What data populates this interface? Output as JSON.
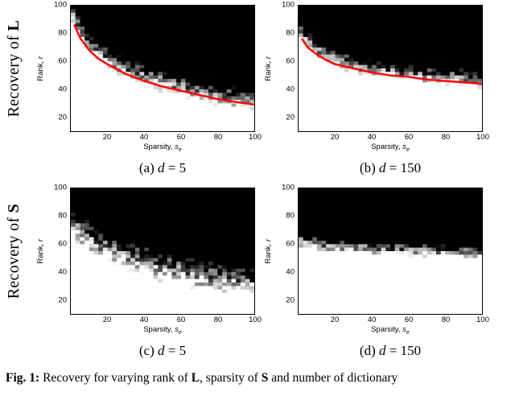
{
  "rows": [
    {
      "prefix": "Recovery of ",
      "bold": "L"
    },
    {
      "prefix": "Recovery of ",
      "bold": "S"
    }
  ],
  "axes": {
    "y_text": "Rank, ",
    "y_var": "r",
    "x_text": "Sparsity, ",
    "x_var": "s",
    "x_sub": "e"
  },
  "caption": {
    "label": "Fig. 1:",
    "t1": " Recovery for varying rank of ",
    "b1": "L",
    "t2": ", sparsity of ",
    "b2": "S",
    "t3": " and number of dictionary"
  },
  "colors": {
    "red_curve": "#ff0000",
    "fail_region": "#000000",
    "success_region": "#ffffff"
  },
  "chart_data": [
    {
      "id": "a",
      "type": "heatmap",
      "subcaption": "(a) d = 5",
      "caption": {
        "paren": "(a)",
        "variable": "d",
        "value": "= 5"
      },
      "xlabel": "Sparsity, s_e",
      "ylabel": "Rank, r",
      "xlim": [
        0,
        100
      ],
      "ylim": [
        10,
        100
      ],
      "xticks": [
        20,
        40,
        60,
        80,
        100
      ],
      "yticks": [
        20,
        40,
        60,
        80,
        100
      ],
      "boundary": {
        "s": [
          0,
          5,
          10,
          15,
          20,
          30,
          40,
          50,
          60,
          70,
          80,
          90,
          100
        ],
        "r": [
          97,
          82,
          72,
          66,
          62,
          55,
          50,
          46,
          42,
          39,
          36,
          33,
          31
        ]
      },
      "transition": 8,
      "red_curve": {
        "s": [
          2,
          5,
          10,
          15,
          20,
          30,
          40,
          50,
          60,
          70,
          80,
          90,
          100
        ],
        "r": [
          86,
          77,
          68,
          62,
          58,
          51,
          46,
          42,
          39,
          36,
          33,
          31,
          29
        ]
      }
    },
    {
      "id": "b",
      "type": "heatmap",
      "subcaption": "(b) d = 150",
      "caption": {
        "paren": "(b)",
        "variable": "d",
        "value": "= 150"
      },
      "xlabel": "Sparsity, s_e",
      "ylabel": "Rank, r",
      "xlim": [
        0,
        100
      ],
      "ylim": [
        10,
        100
      ],
      "xticks": [
        20,
        40,
        60,
        80,
        100
      ],
      "yticks": [
        20,
        40,
        60,
        80,
        100
      ],
      "boundary": {
        "s": [
          0,
          5,
          10,
          15,
          20,
          30,
          40,
          50,
          60,
          70,
          80,
          90,
          100
        ],
        "r": [
          84,
          75,
          69,
          65,
          62,
          58,
          55,
          53,
          51,
          50,
          49,
          48,
          47
        ]
      },
      "transition": 6,
      "red_curve": {
        "s": [
          2,
          5,
          10,
          15,
          20,
          30,
          40,
          50,
          60,
          70,
          80,
          90,
          100
        ],
        "r": [
          76,
          70,
          65,
          61,
          58,
          55,
          52,
          50,
          49,
          47,
          46,
          45,
          44
        ]
      }
    },
    {
      "id": "c",
      "type": "heatmap",
      "subcaption": "(c) d = 5",
      "caption": {
        "paren": "(c)",
        "variable": "d",
        "value": "= 5"
      },
      "xlabel": "Sparsity, s_e",
      "ylabel": "Rank, r",
      "xlim": [
        0,
        100
      ],
      "ylim": [
        10,
        100
      ],
      "xticks": [
        20,
        40,
        60,
        80,
        100
      ],
      "yticks": [
        20,
        40,
        60,
        80,
        100
      ],
      "boundary": {
        "s": [
          0,
          5,
          10,
          15,
          20,
          30,
          40,
          50,
          60,
          70,
          80,
          90,
          100
        ],
        "r": [
          78,
          70,
          64,
          60,
          57,
          52,
          48,
          44,
          41,
          38,
          36,
          34,
          33
        ]
      },
      "transition": 11,
      "red_curve": null
    },
    {
      "id": "d",
      "type": "heatmap",
      "subcaption": "(d) d = 150",
      "caption": {
        "paren": "(d)",
        "variable": "d",
        "value": "= 150"
      },
      "xlabel": "Sparsity, s_e",
      "ylabel": "Rank, r",
      "xlim": [
        0,
        100
      ],
      "ylim": [
        10,
        100
      ],
      "xticks": [
        20,
        40,
        60,
        80,
        100
      ],
      "yticks": [
        20,
        40,
        60,
        80,
        100
      ],
      "boundary": {
        "s": [
          0,
          10,
          20,
          40,
          60,
          80,
          100
        ],
        "r": [
          63,
          60,
          58,
          57,
          56,
          55,
          54
        ]
      },
      "transition": 5,
      "red_curve": null
    }
  ]
}
